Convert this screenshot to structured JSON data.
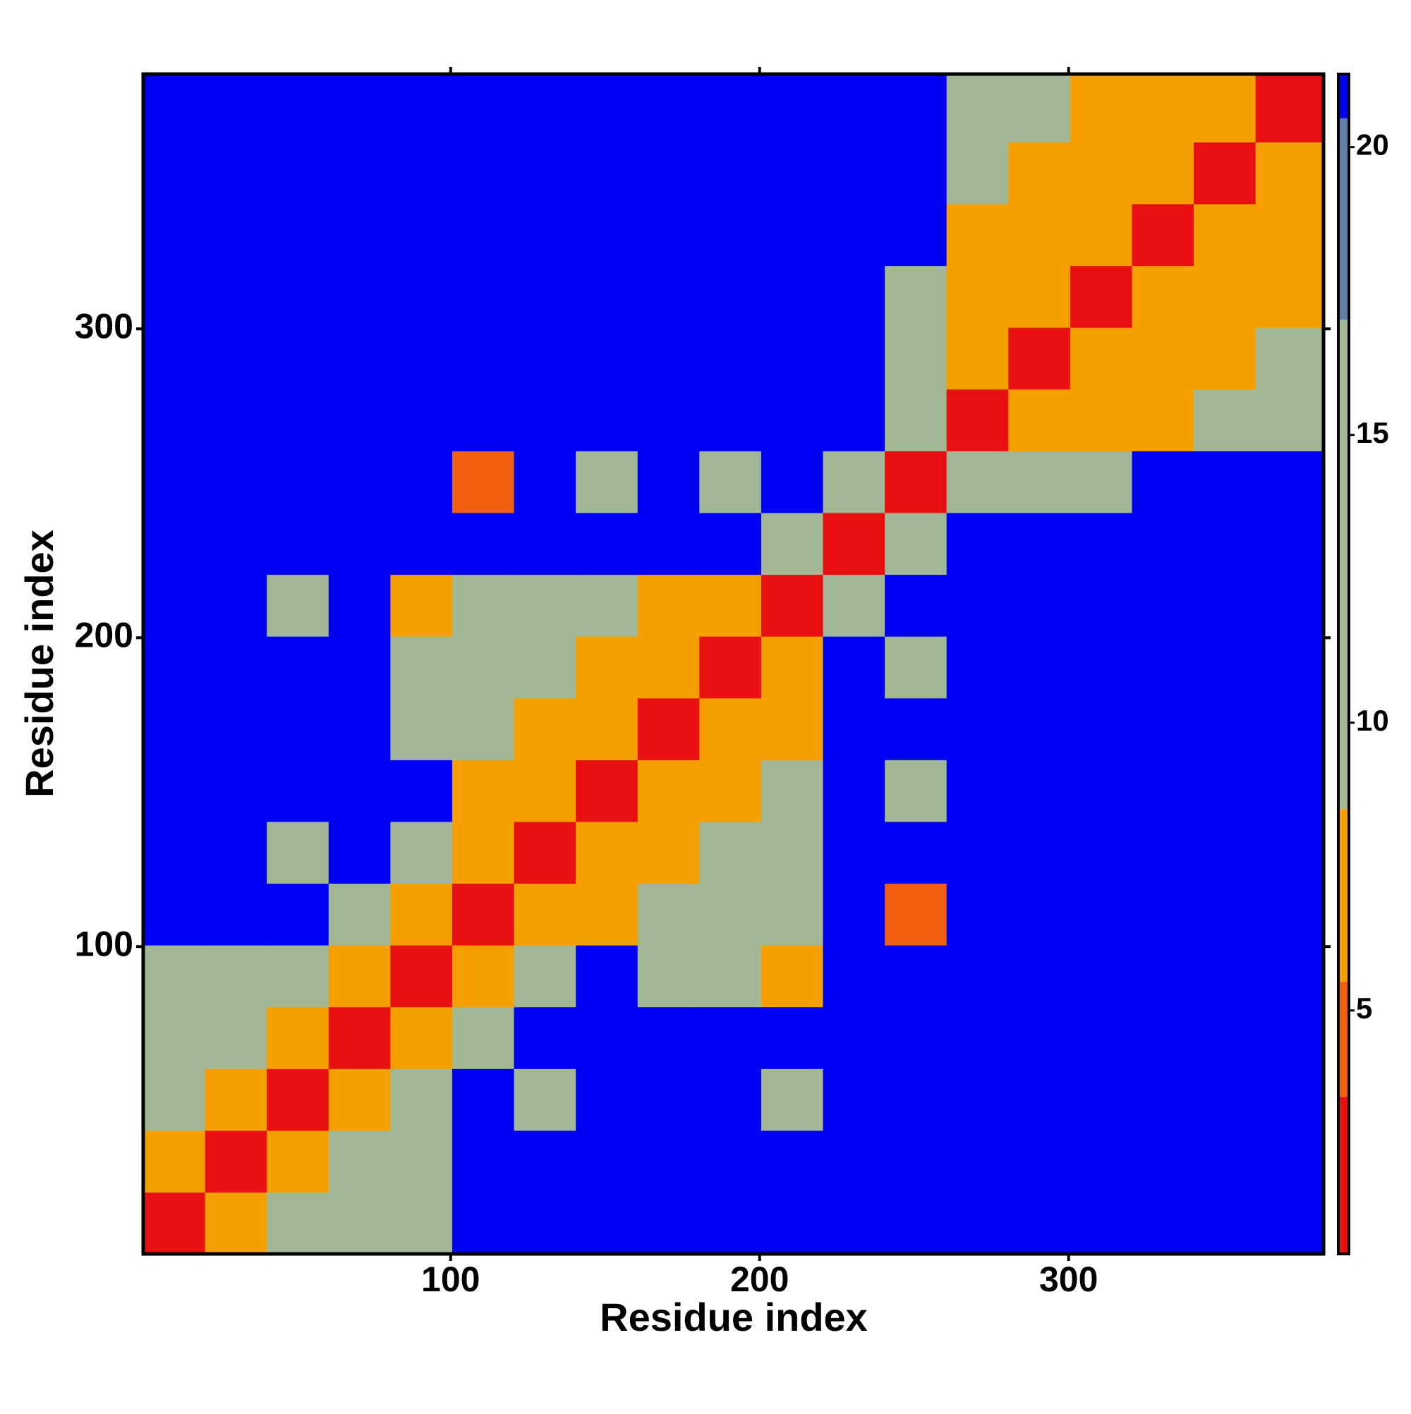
{
  "chart_data": {
    "type": "heatmap",
    "x_label": "Residue index",
    "y_label": "Residue index",
    "xlim": [
      0.5,
      382.5
    ],
    "ylim": [
      0.5,
      382.5
    ],
    "xticks": [
      100,
      200,
      300
    ],
    "yticks": [
      100,
      200,
      300
    ],
    "xbins": [
      0.5,
      20.5,
      40.5,
      60.5,
      80.5,
      100.5,
      120.5,
      140.5,
      160.5,
      180.5,
      200.5,
      220.5,
      240.5,
      260.5,
      280.5,
      300.5,
      320.5,
      340.5,
      360.5,
      382.5
    ],
    "ybins": [
      0.5,
      20.5,
      40.5,
      60.5,
      80.5,
      100.5,
      120.5,
      140.5,
      160.5,
      180.5,
      200.5,
      220.5,
      240.5,
      260.5,
      280.5,
      300.5,
      320.5,
      340.5,
      360.5,
      382.5
    ],
    "values": [
      [
        2,
        6,
        9,
        10,
        11,
        21,
        21,
        21,
        21,
        21,
        21,
        21,
        21,
        21,
        21,
        21,
        21,
        21,
        21
      ],
      [
        6,
        2,
        6,
        9,
        10,
        21,
        21,
        21,
        21,
        21,
        21,
        21,
        21,
        21,
        21,
        21,
        21,
        21,
        21
      ],
      [
        9,
        6,
        2,
        6,
        9,
        21,
        13,
        21,
        21,
        21,
        14,
        21,
        21,
        21,
        21,
        21,
        21,
        21,
        21
      ],
      [
        10,
        9,
        6,
        2,
        6,
        12,
        21,
        21,
        21,
        21,
        21,
        21,
        21,
        21,
        21,
        21,
        21,
        21,
        21
      ],
      [
        11,
        10,
        9,
        6,
        2,
        8,
        10,
        21,
        11,
        12,
        7,
        21,
        21,
        21,
        21,
        21,
        21,
        21,
        21
      ],
      [
        21,
        21,
        21,
        12,
        8,
        2,
        6,
        7,
        9,
        10,
        12,
        21,
        5,
        21,
        21,
        21,
        21,
        21,
        21
      ],
      [
        21,
        21,
        13,
        21,
        10,
        6,
        2,
        6,
        7,
        9,
        10,
        21,
        21,
        21,
        21,
        21,
        21,
        21,
        21
      ],
      [
        21,
        21,
        21,
        21,
        21,
        7,
        6,
        2,
        6,
        7,
        9,
        21,
        15,
        21,
        21,
        21,
        21,
        21,
        21
      ],
      [
        21,
        21,
        21,
        21,
        11,
        9,
        7,
        6,
        2,
        6,
        7,
        21,
        21,
        21,
        21,
        21,
        21,
        21,
        21
      ],
      [
        21,
        21,
        21,
        21,
        12,
        10,
        9,
        7,
        6,
        2,
        6,
        21,
        12,
        21,
        21,
        21,
        21,
        21,
        21
      ],
      [
        21,
        21,
        14,
        21,
        7,
        12,
        10,
        9,
        7,
        6,
        2,
        9,
        21,
        21,
        21,
        21,
        21,
        21,
        21
      ],
      [
        21,
        21,
        21,
        21,
        21,
        21,
        21,
        21,
        21,
        21,
        9,
        2,
        10,
        21,
        21,
        21,
        21,
        21,
        21
      ],
      [
        21,
        21,
        21,
        21,
        21,
        5,
        21,
        15,
        21,
        12,
        21,
        10,
        2,
        9,
        11,
        12,
        21,
        21,
        21
      ],
      [
        21,
        21,
        21,
        21,
        21,
        21,
        21,
        21,
        21,
        21,
        21,
        21,
        9,
        2,
        6,
        7,
        8,
        10,
        11
      ],
      [
        21,
        21,
        21,
        21,
        21,
        21,
        21,
        21,
        21,
        21,
        21,
        21,
        11,
        6,
        2,
        6,
        7,
        8,
        10
      ],
      [
        21,
        21,
        21,
        21,
        21,
        21,
        21,
        21,
        21,
        21,
        21,
        21,
        12,
        7,
        6,
        2,
        6,
        7,
        8
      ],
      [
        21,
        21,
        21,
        21,
        21,
        21,
        21,
        21,
        21,
        21,
        21,
        21,
        21,
        8,
        7,
        6,
        2,
        6,
        7
      ],
      [
        21,
        21,
        21,
        21,
        21,
        21,
        21,
        21,
        21,
        21,
        21,
        21,
        21,
        10,
        8,
        7,
        6,
        2,
        6
      ],
      [
        21,
        21,
        21,
        21,
        21,
        21,
        21,
        21,
        21,
        21,
        21,
        21,
        21,
        11,
        10,
        8,
        7,
        6,
        2
      ]
    ],
    "colorbar": {
      "lim": [
        0.77,
        21.27
      ],
      "ticks": [
        5,
        10,
        15,
        20
      ],
      "stops": [
        {
          "max": 3.5,
          "color": "#e81010"
        },
        {
          "max": 5.5,
          "color": "#f06010"
        },
        {
          "max": 8.5,
          "color": "#f5a000"
        },
        {
          "max": 17,
          "color": "#a2b894"
        },
        {
          "max": 20.5,
          "color": "#5f80a8"
        },
        {
          "max": 21.27,
          "color": "#0000f2"
        }
      ]
    }
  }
}
